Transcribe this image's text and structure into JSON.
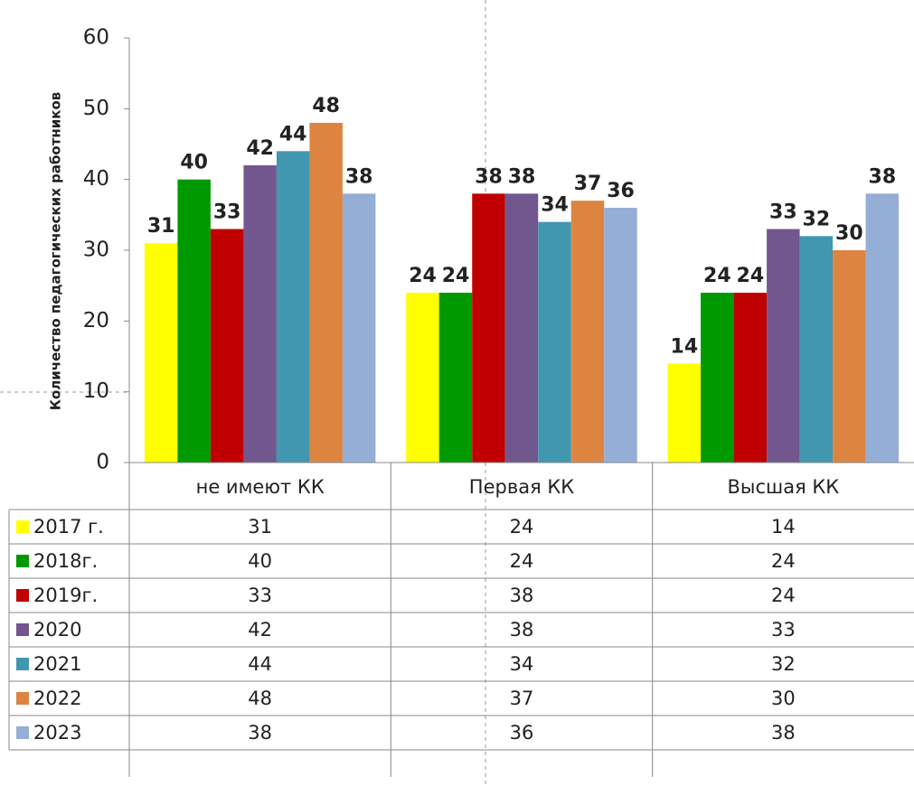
{
  "chart_data": {
    "type": "bar",
    "y_label": "Количество педагогических работников",
    "categories": [
      "не имеют КК",
      "Первая КК",
      "Высшая КК"
    ],
    "series": [
      {
        "name": "2017 г.",
        "color": "#ffff00",
        "values": [
          31,
          24,
          14
        ]
      },
      {
        "name": "2018г.",
        "color": "#009900",
        "values": [
          40,
          24,
          24
        ]
      },
      {
        "name": "2019г.",
        "color": "#c00000",
        "values": [
          33,
          38,
          24
        ]
      },
      {
        "name": "2020",
        "color": "#72578f",
        "values": [
          42,
          38,
          33
        ]
      },
      {
        "name": "2021",
        "color": "#4197b0",
        "values": [
          44,
          34,
          32
        ]
      },
      {
        "name": "2022",
        "color": "#dd8540",
        "values": [
          48,
          37,
          30
        ]
      },
      {
        "name": "2023",
        "color": "#94aed6",
        "values": [
          38,
          36,
          38
        ]
      }
    ],
    "ylim": [
      0,
      60
    ],
    "yticks": [
      0,
      10,
      20,
      30,
      40,
      50,
      60
    ],
    "grid": false,
    "data_table": true
  }
}
